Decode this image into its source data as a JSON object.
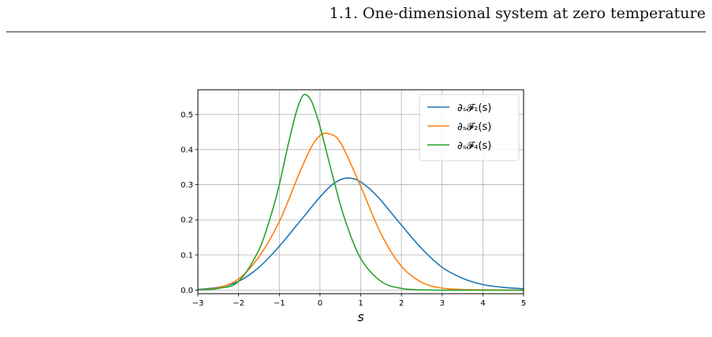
{
  "header": {
    "running_title": "1.1.   One-dimensional system at zero temperature"
  },
  "chart_data": {
    "type": "line",
    "title": "",
    "xlabel": "s",
    "ylabel": "",
    "xlim": [
      -3,
      5
    ],
    "ylim": [
      -0.01,
      0.57
    ],
    "grid": true,
    "legend_position": "top-right",
    "xticks": [
      "−3",
      "−2",
      "−1",
      "0",
      "1",
      "2",
      "3",
      "4",
      "5"
    ],
    "yticks": [
      "0.0",
      "0.1",
      "0.2",
      "0.3",
      "0.4",
      "0.5"
    ],
    "series": [
      {
        "name": "∂ₛ𝓕₁(s)",
        "color": "#1f77b4",
        "x": [
          -3,
          -2.5,
          -2,
          -1.5,
          -1,
          -0.5,
          0,
          0.3,
          0.6,
          0.9,
          1.2,
          1.5,
          2,
          2.5,
          3,
          3.5,
          4,
          4.5,
          5
        ],
        "y": [
          0.002,
          0.008,
          0.025,
          0.065,
          0.125,
          0.195,
          0.265,
          0.3,
          0.318,
          0.314,
          0.29,
          0.255,
          0.185,
          0.118,
          0.065,
          0.034,
          0.016,
          0.008,
          0.004
        ]
      },
      {
        "name": "∂ₛ𝓕₂(s)",
        "color": "#ff7f0e",
        "x": [
          -3,
          -2.5,
          -2,
          -1.5,
          -1,
          -0.5,
          -0.2,
          0,
          0.2,
          0.5,
          1,
          1.5,
          2,
          2.5,
          3,
          3.5,
          4,
          5
        ],
        "y": [
          0.001,
          0.007,
          0.032,
          0.095,
          0.195,
          0.335,
          0.41,
          0.44,
          0.445,
          0.42,
          0.295,
          0.16,
          0.068,
          0.022,
          0.006,
          0.002,
          0.001,
          0.0
        ]
      },
      {
        "name": "∂ₛ𝓕₄(s)",
        "color": "#2ca02c",
        "x": [
          -3,
          -2.5,
          -2,
          -1.5,
          -1.2,
          -1,
          -0.8,
          -0.6,
          -0.45,
          -0.35,
          -0.2,
          0,
          0.3,
          0.6,
          1,
          1.5,
          2,
          2.5,
          3,
          4,
          5
        ],
        "y": [
          0.001,
          0.005,
          0.025,
          0.115,
          0.215,
          0.3,
          0.405,
          0.5,
          0.548,
          0.556,
          0.535,
          0.465,
          0.33,
          0.205,
          0.09,
          0.025,
          0.005,
          0.001,
          0.0,
          0.0,
          0.0
        ]
      }
    ]
  }
}
